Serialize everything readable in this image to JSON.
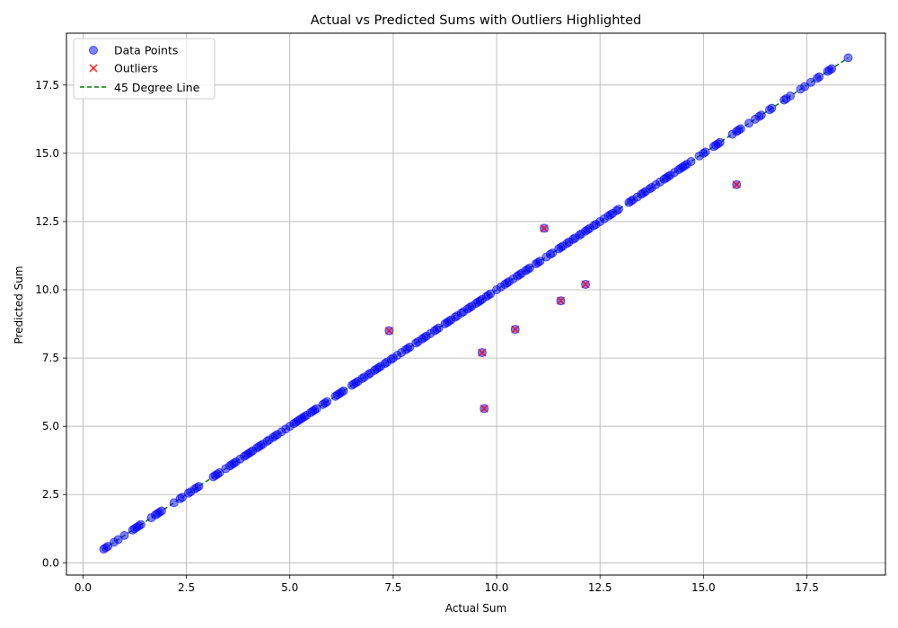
{
  "chart_data": {
    "type": "scatter",
    "title": "Actual vs Predicted Sums with Outliers Highlighted",
    "xlabel": "Actual Sum",
    "ylabel": "Predicted Sum",
    "xlim": [
      -0.4,
      19.4
    ],
    "ylim": [
      -0.45,
      19.4
    ],
    "xticks": [
      0.0,
      2.5,
      5.0,
      7.5,
      10.0,
      12.5,
      15.0,
      17.5
    ],
    "xtick_labels": [
      "0.0",
      "2.5",
      "5.0",
      "7.5",
      "10.0",
      "12.5",
      "15.0",
      "17.5"
    ],
    "yticks": [
      0.0,
      2.5,
      5.0,
      7.5,
      10.0,
      12.5,
      15.0,
      17.5
    ],
    "ytick_labels": [
      "0.0",
      "2.5",
      "5.0",
      "7.5",
      "10.0",
      "12.5",
      "15.0",
      "17.5"
    ],
    "grid": true,
    "legend_position": "top-left",
    "colors": {
      "data_points": "#0000ff",
      "outliers": "#ff0000",
      "line": "#008000",
      "grid": "#b0b0b0"
    },
    "series": [
      {
        "name": "Data Points",
        "marker": "circle",
        "points": [
          [
            0.5,
            0.5
          ],
          [
            0.55,
            0.55
          ],
          [
            0.6,
            0.6
          ],
          [
            0.75,
            0.75
          ],
          [
            0.85,
            0.85
          ],
          [
            1.0,
            1.0
          ],
          [
            1.2,
            1.2
          ],
          [
            1.25,
            1.25
          ],
          [
            1.3,
            1.3
          ],
          [
            1.35,
            1.35
          ],
          [
            1.4,
            1.4
          ],
          [
            1.65,
            1.65
          ],
          [
            1.75,
            1.75
          ],
          [
            1.8,
            1.8
          ],
          [
            1.85,
            1.85
          ],
          [
            1.9,
            1.9
          ],
          [
            2.2,
            2.2
          ],
          [
            2.35,
            2.35
          ],
          [
            2.4,
            2.4
          ],
          [
            2.55,
            2.55
          ],
          [
            2.6,
            2.6
          ],
          [
            2.7,
            2.7
          ],
          [
            2.75,
            2.75
          ],
          [
            2.8,
            2.8
          ],
          [
            3.15,
            3.15
          ],
          [
            3.2,
            3.2
          ],
          [
            3.25,
            3.25
          ],
          [
            3.3,
            3.3
          ],
          [
            3.45,
            3.45
          ],
          [
            3.55,
            3.55
          ],
          [
            3.6,
            3.6
          ],
          [
            3.65,
            3.65
          ],
          [
            3.7,
            3.7
          ],
          [
            3.8,
            3.8
          ],
          [
            3.9,
            3.9
          ],
          [
            3.95,
            3.95
          ],
          [
            4.0,
            4.0
          ],
          [
            4.05,
            4.05
          ],
          [
            4.1,
            4.1
          ],
          [
            4.2,
            4.2
          ],
          [
            4.25,
            4.25
          ],
          [
            4.3,
            4.3
          ],
          [
            4.35,
            4.35
          ],
          [
            4.45,
            4.45
          ],
          [
            4.5,
            4.5
          ],
          [
            4.6,
            4.6
          ],
          [
            4.65,
            4.65
          ],
          [
            4.7,
            4.7
          ],
          [
            4.8,
            4.8
          ],
          [
            4.9,
            4.9
          ],
          [
            5.0,
            5.0
          ],
          [
            5.1,
            5.1
          ],
          [
            5.15,
            5.15
          ],
          [
            5.2,
            5.2
          ],
          [
            5.25,
            5.25
          ],
          [
            5.3,
            5.3
          ],
          [
            5.35,
            5.35
          ],
          [
            5.4,
            5.4
          ],
          [
            5.5,
            5.5
          ],
          [
            5.55,
            5.55
          ],
          [
            5.6,
            5.6
          ],
          [
            5.65,
            5.65
          ],
          [
            5.8,
            5.8
          ],
          [
            5.85,
            5.85
          ],
          [
            5.9,
            5.9
          ],
          [
            6.1,
            6.1
          ],
          [
            6.15,
            6.15
          ],
          [
            6.2,
            6.2
          ],
          [
            6.25,
            6.25
          ],
          [
            6.3,
            6.3
          ],
          [
            6.5,
            6.5
          ],
          [
            6.55,
            6.55
          ],
          [
            6.6,
            6.6
          ],
          [
            6.65,
            6.65
          ],
          [
            6.75,
            6.75
          ],
          [
            6.8,
            6.8
          ],
          [
            6.9,
            6.9
          ],
          [
            6.95,
            6.95
          ],
          [
            7.05,
            7.05
          ],
          [
            7.1,
            7.1
          ],
          [
            7.15,
            7.15
          ],
          [
            7.2,
            7.2
          ],
          [
            7.3,
            7.3
          ],
          [
            7.35,
            7.35
          ],
          [
            7.45,
            7.45
          ],
          [
            7.5,
            7.5
          ],
          [
            7.6,
            7.6
          ],
          [
            7.7,
            7.7
          ],
          [
            7.8,
            7.8
          ],
          [
            7.85,
            7.85
          ],
          [
            7.9,
            7.9
          ],
          [
            8.05,
            8.05
          ],
          [
            8.1,
            8.1
          ],
          [
            8.2,
            8.2
          ],
          [
            8.25,
            8.25
          ],
          [
            8.3,
            8.3
          ],
          [
            8.4,
            8.4
          ],
          [
            8.5,
            8.5
          ],
          [
            8.55,
            8.55
          ],
          [
            8.6,
            8.6
          ],
          [
            8.75,
            8.75
          ],
          [
            8.8,
            8.8
          ],
          [
            8.85,
            8.85
          ],
          [
            8.9,
            8.9
          ],
          [
            9.0,
            9.0
          ],
          [
            9.05,
            9.05
          ],
          [
            9.15,
            9.15
          ],
          [
            9.2,
            9.2
          ],
          [
            9.3,
            9.3
          ],
          [
            9.35,
            9.35
          ],
          [
            9.4,
            9.4
          ],
          [
            9.5,
            9.5
          ],
          [
            9.55,
            9.55
          ],
          [
            9.6,
            9.6
          ],
          [
            9.65,
            9.65
          ],
          [
            9.75,
            9.75
          ],
          [
            9.8,
            9.8
          ],
          [
            9.85,
            9.85
          ],
          [
            10.0,
            10.0
          ],
          [
            10.1,
            10.1
          ],
          [
            10.2,
            10.2
          ],
          [
            10.25,
            10.25
          ],
          [
            10.3,
            10.3
          ],
          [
            10.4,
            10.4
          ],
          [
            10.5,
            10.5
          ],
          [
            10.55,
            10.55
          ],
          [
            10.6,
            10.6
          ],
          [
            10.7,
            10.7
          ],
          [
            10.75,
            10.75
          ],
          [
            10.8,
            10.8
          ],
          [
            10.95,
            10.95
          ],
          [
            11.0,
            11.0
          ],
          [
            11.05,
            11.05
          ],
          [
            11.2,
            11.2
          ],
          [
            11.3,
            11.3
          ],
          [
            11.35,
            11.35
          ],
          [
            11.5,
            11.5
          ],
          [
            11.55,
            11.55
          ],
          [
            11.6,
            11.6
          ],
          [
            11.7,
            11.7
          ],
          [
            11.75,
            11.75
          ],
          [
            11.85,
            11.85
          ],
          [
            11.9,
            11.9
          ],
          [
            12.0,
            12.0
          ],
          [
            12.05,
            12.05
          ],
          [
            12.15,
            12.15
          ],
          [
            12.2,
            12.2
          ],
          [
            12.25,
            12.25
          ],
          [
            12.35,
            12.35
          ],
          [
            12.4,
            12.4
          ],
          [
            12.5,
            12.5
          ],
          [
            12.6,
            12.6
          ],
          [
            12.7,
            12.7
          ],
          [
            12.75,
            12.75
          ],
          [
            12.8,
            12.8
          ],
          [
            12.9,
            12.9
          ],
          [
            12.95,
            12.95
          ],
          [
            13.2,
            13.2
          ],
          [
            13.25,
            13.25
          ],
          [
            13.3,
            13.3
          ],
          [
            13.4,
            13.4
          ],
          [
            13.5,
            13.5
          ],
          [
            13.55,
            13.55
          ],
          [
            13.6,
            13.6
          ],
          [
            13.7,
            13.7
          ],
          [
            13.75,
            13.75
          ],
          [
            13.85,
            13.85
          ],
          [
            13.95,
            13.95
          ],
          [
            14.05,
            14.05
          ],
          [
            14.1,
            14.1
          ],
          [
            14.15,
            14.15
          ],
          [
            14.2,
            14.2
          ],
          [
            14.3,
            14.3
          ],
          [
            14.4,
            14.4
          ],
          [
            14.45,
            14.45
          ],
          [
            14.5,
            14.5
          ],
          [
            14.55,
            14.55
          ],
          [
            14.6,
            14.6
          ],
          [
            14.7,
            14.7
          ],
          [
            14.9,
            14.9
          ],
          [
            15.0,
            15.0
          ],
          [
            15.05,
            15.05
          ],
          [
            15.25,
            15.25
          ],
          [
            15.3,
            15.3
          ],
          [
            15.35,
            15.35
          ],
          [
            15.4,
            15.4
          ],
          [
            15.7,
            15.7
          ],
          [
            15.8,
            15.8
          ],
          [
            15.85,
            15.85
          ],
          [
            15.9,
            15.9
          ],
          [
            16.1,
            16.1
          ],
          [
            16.25,
            16.25
          ],
          [
            16.35,
            16.35
          ],
          [
            16.4,
            16.4
          ],
          [
            16.6,
            16.6
          ],
          [
            16.65,
            16.65
          ],
          [
            16.95,
            16.95
          ],
          [
            17.0,
            17.0
          ],
          [
            17.1,
            17.1
          ],
          [
            17.35,
            17.35
          ],
          [
            17.45,
            17.45
          ],
          [
            17.6,
            17.6
          ],
          [
            17.75,
            17.75
          ],
          [
            17.8,
            17.8
          ],
          [
            18.0,
            18.0
          ],
          [
            18.05,
            18.05
          ],
          [
            18.1,
            18.1
          ],
          [
            18.5,
            18.5
          ],
          [
            7.4,
            8.5
          ],
          [
            9.65,
            7.7
          ],
          [
            9.7,
            5.65
          ],
          [
            10.45,
            8.55
          ],
          [
            11.15,
            12.25
          ],
          [
            11.55,
            9.6
          ],
          [
            12.15,
            10.2
          ],
          [
            15.8,
            13.85
          ]
        ]
      },
      {
        "name": "Outliers",
        "marker": "x",
        "points": [
          [
            7.4,
            8.5
          ],
          [
            9.65,
            7.7
          ],
          [
            9.7,
            5.65
          ],
          [
            10.45,
            8.55
          ],
          [
            11.15,
            12.25
          ],
          [
            11.55,
            9.6
          ],
          [
            12.15,
            10.2
          ],
          [
            15.8,
            13.85
          ]
        ]
      },
      {
        "name": "45 Degree Line",
        "marker": "dashed-line",
        "points": [
          [
            0.5,
            0.5
          ],
          [
            18.5,
            18.5
          ]
        ]
      }
    ]
  }
}
